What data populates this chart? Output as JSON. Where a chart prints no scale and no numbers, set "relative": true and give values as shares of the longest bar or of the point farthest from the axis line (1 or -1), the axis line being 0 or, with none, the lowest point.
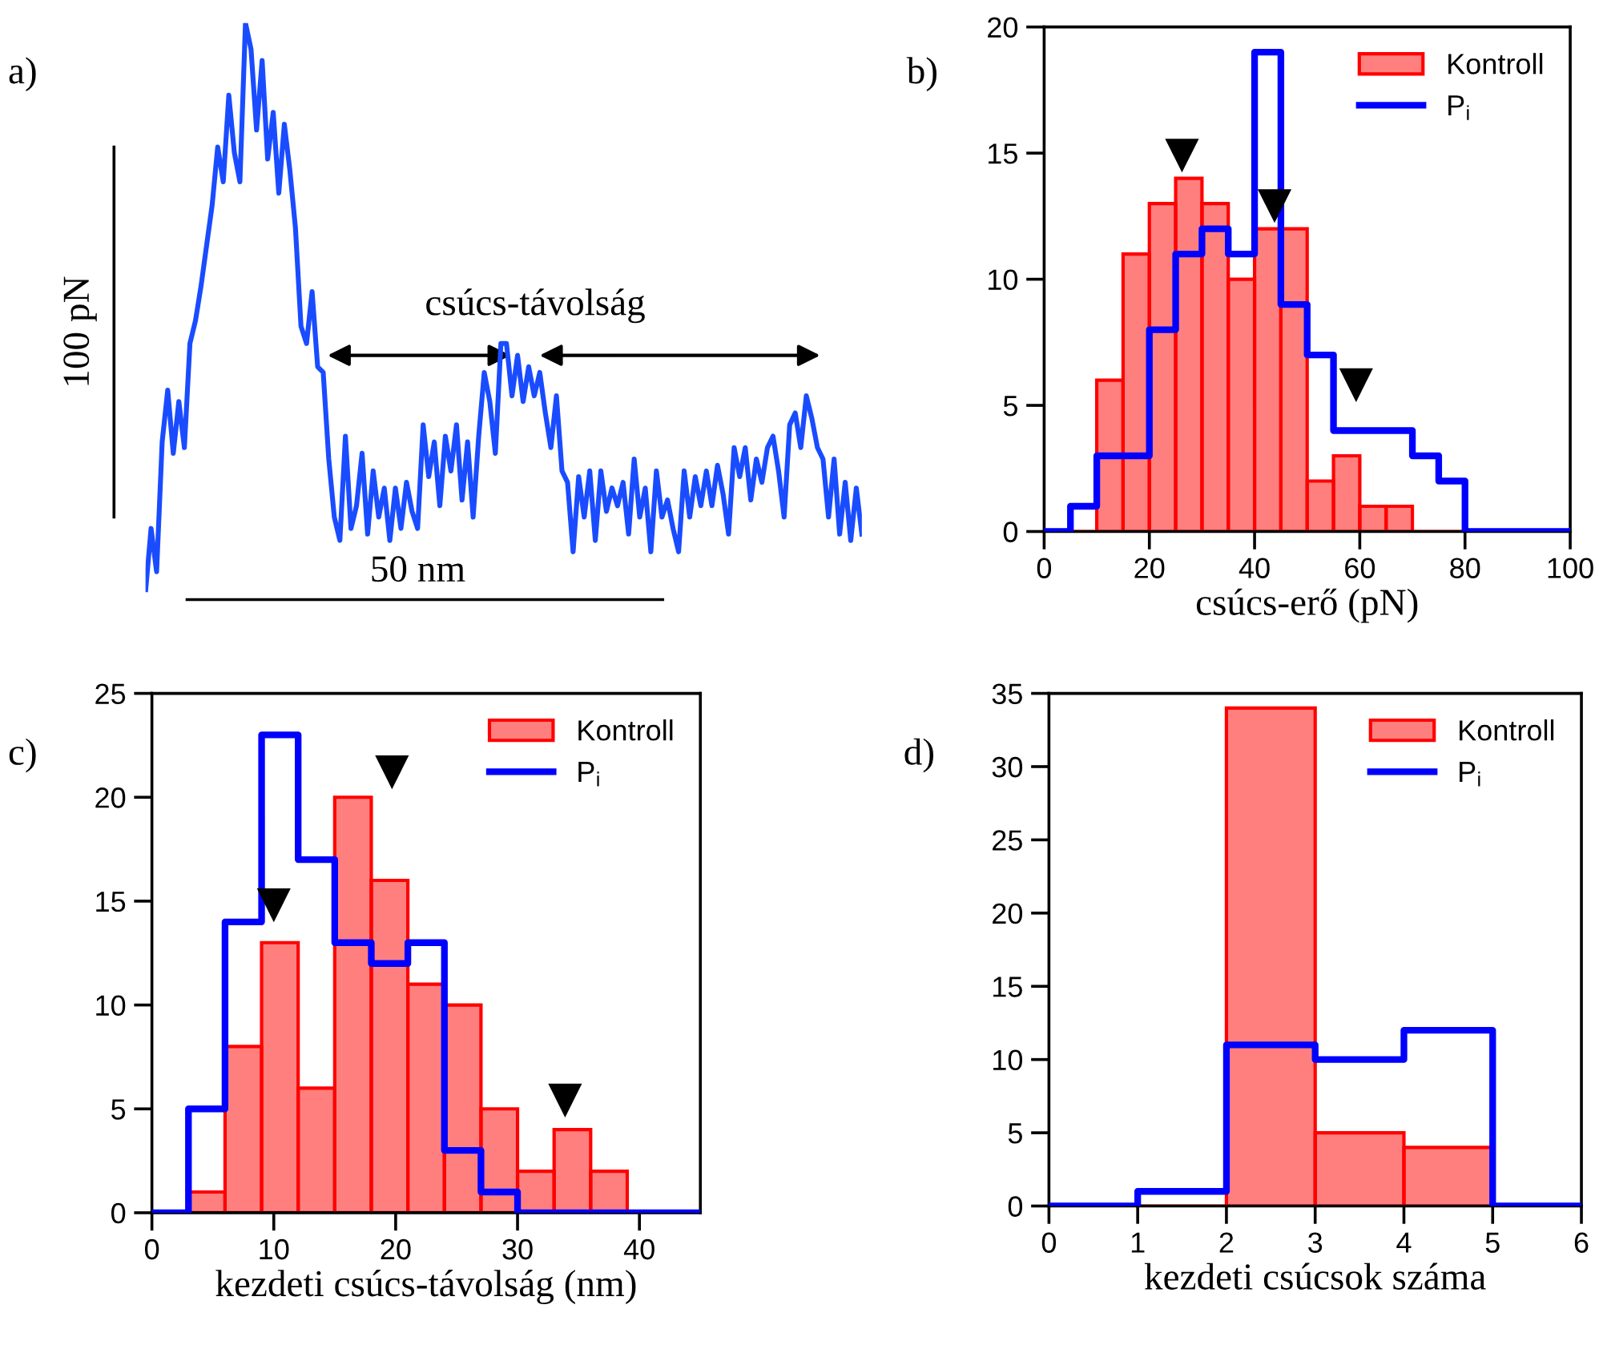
{
  "chart_data": [
    {
      "type": "line",
      "title": "a)",
      "relative": true,
      "annotations": [
        "100 pN",
        "50 nm",
        "csúcs-távolság"
      ],
      "categories": [
        null,
        null,
        null,
        null,
        null,
        null,
        null,
        null,
        null,
        null,
        null,
        null,
        null,
        null,
        null,
        null,
        null,
        null,
        null,
        null,
        null,
        null,
        null,
        null,
        null,
        null,
        null,
        null,
        null,
        null,
        null,
        null,
        null,
        null,
        null,
        null,
        null,
        null,
        null,
        null,
        null,
        null,
        null,
        null,
        null,
        null,
        null,
        null,
        null,
        null,
        null,
        null,
        null,
        null,
        null,
        null,
        null,
        null,
        null,
        null,
        null,
        null,
        null,
        null,
        null,
        null,
        null,
        null,
        null,
        null,
        null,
        null,
        null,
        null,
        null,
        null,
        null,
        null,
        null,
        null,
        null,
        null,
        null,
        null,
        null,
        null,
        null,
        null,
        null,
        null,
        null,
        null,
        null,
        null,
        null,
        null,
        null,
        null,
        null,
        null,
        null,
        null,
        null,
        null,
        null,
        null,
        null,
        null,
        null,
        null,
        null,
        null,
        null,
        null,
        null,
        null,
        null,
        null,
        null,
        null,
        null,
        null,
        null,
        null,
        null,
        null,
        null,
        null,
        null,
        null
      ],
      "series": [
        {
          "color": "#1a4cff",
          "values": [
            0.0,
            0.112,
            0.036,
            0.264,
            0.355,
            0.244,
            0.335,
            0.254,
            0.437,
            0.477,
            0.538,
            0.609,
            0.68,
            0.782,
            0.721,
            0.873,
            0.772,
            0.721,
            1.0,
            0.954,
            0.812,
            0.934,
            0.761,
            0.843,
            0.701,
            0.822,
            0.741,
            0.64,
            0.467,
            0.437,
            0.528,
            0.396,
            0.386,
            0.234,
            0.132,
            0.091,
            0.274,
            0.112,
            0.152,
            0.244,
            0.102,
            0.213,
            0.132,
            0.183,
            0.091,
            0.183,
            0.112,
            0.193,
            0.142,
            0.112,
            0.294,
            0.203,
            0.264,
            0.152,
            0.274,
            0.213,
            0.294,
            0.162,
            0.264,
            0.132,
            0.274,
            0.386,
            0.335,
            0.244,
            0.437,
            0.437,
            0.345,
            0.416,
            0.335,
            0.396,
            0.345,
            0.386,
            0.315,
            0.254,
            0.345,
            0.213,
            0.193,
            0.071,
            0.203,
            0.132,
            0.213,
            0.091,
            0.213,
            0.142,
            0.183,
            0.152,
            0.193,
            0.102,
            0.234,
            0.132,
            0.183,
            0.071,
            0.213,
            0.132,
            0.162,
            0.112,
            0.071,
            0.213,
            0.132,
            0.203,
            0.152,
            0.213,
            0.152,
            0.223,
            0.173,
            0.102,
            0.254,
            0.203,
            0.254,
            0.162,
            0.234,
            0.193,
            0.254,
            0.274,
            0.213,
            0.132,
            0.294,
            0.315,
            0.254,
            0.345,
            0.305,
            0.254,
            0.234,
            0.132,
            0.234,
            0.102,
            0.193,
            0.091,
            0.183,
            0.102
          ]
        }
      ]
    },
    {
      "type": "histogram",
      "title": "b)",
      "xlabel": "csúcs-erő (pN)",
      "legend": "top right",
      "bins": [
        0,
        5,
        10,
        15,
        20,
        25,
        30,
        35,
        40,
        45,
        50,
        55,
        60,
        65,
        70,
        75,
        80,
        85,
        90,
        95,
        100
      ],
      "xlim": [
        0,
        100
      ],
      "xticks": [
        0,
        20,
        40,
        60,
        80,
        100
      ],
      "ylim": [
        0,
        20
      ],
      "yticks": [
        0,
        5,
        10,
        15,
        20
      ],
      "series": [
        {
          "name": "Kontroll",
          "type": "histogram",
          "color": "#ff0000",
          "values": [
            0,
            0,
            6,
            11,
            13,
            14,
            13,
            10,
            12,
            12,
            2,
            3,
            1,
            1,
            0,
            0,
            0,
            0,
            0,
            0
          ]
        },
        {
          "name": "P$_{i}$",
          "type": "step",
          "color": "#0000ff",
          "x": [
            0,
            5,
            10,
            15,
            20,
            25,
            30,
            35,
            40,
            45,
            50,
            55,
            60,
            65,
            70,
            75,
            80,
            85,
            90,
            95,
            100
          ],
          "values": [
            0,
            1,
            3,
            3,
            8,
            11,
            12,
            11,
            19,
            9,
            7,
            4,
            4,
            4,
            3,
            2,
            0,
            0,
            0,
            0,
            0
          ]
        },
        {
          "type": "scatter",
          "marker": "triangle",
          "color": "#000000",
          "x": [
            26.2,
            43.8,
            59.3
          ],
          "values": [
            14.9,
            12.9,
            5.8
          ]
        }
      ]
    },
    {
      "type": "histogram",
      "title": "c)",
      "xlabel": "kezdeti csúcs-távolság (nm)",
      "legend": "top right",
      "bins": [
        0,
        3,
        6,
        9,
        12,
        15,
        18,
        21,
        24,
        27,
        30,
        33,
        36,
        39,
        42,
        45
      ],
      "xlim": [
        0,
        45
      ],
      "xticks": [
        0,
        10,
        20,
        30,
        40
      ],
      "ylim": [
        0,
        25
      ],
      "yticks": [
        0,
        5,
        10,
        15,
        20,
        25
      ],
      "series": [
        {
          "name": "Kontroll",
          "type": "histogram",
          "color": "#ff0000",
          "values": [
            0,
            1,
            8,
            13,
            6,
            20,
            16,
            11,
            10,
            5,
            2,
            4,
            2,
            0,
            0
          ]
        },
        {
          "name": "P$_{i}$",
          "type": "step",
          "color": "#0000ff",
          "x": [
            0,
            3,
            6,
            9,
            12,
            15,
            18,
            21,
            24,
            27,
            30,
            33,
            36,
            39,
            42,
            45
          ],
          "values": [
            0,
            5,
            14,
            23,
            17,
            13,
            12,
            13,
            3,
            1,
            0,
            0,
            0,
            0,
            0,
            0
          ]
        },
        {
          "type": "scatter",
          "marker": "triangle",
          "color": "#000000",
          "x": [
            10.0,
            19.7,
            33.9
          ],
          "values": [
            14.8,
            21.2,
            5.4
          ]
        }
      ]
    },
    {
      "type": "histogram",
      "title": "d)",
      "xlabel": "kezdeti csúcsok száma",
      "legend": "top right",
      "bins": [
        0,
        1,
        2,
        3,
        4,
        5,
        6
      ],
      "xlim": [
        0,
        6
      ],
      "xticks": [
        0,
        1,
        2,
        3,
        4,
        5,
        6
      ],
      "ylim": [
        0,
        35
      ],
      "yticks": [
        0,
        5,
        10,
        15,
        20,
        25,
        30,
        35
      ],
      "series": [
        {
          "name": "Kontroll",
          "type": "histogram",
          "color": "#ff0000",
          "values": [
            0,
            0,
            34,
            5,
            4,
            0
          ]
        },
        {
          "name": "P$_{i}$",
          "type": "step",
          "color": "#0000ff",
          "x": [
            0,
            1,
            2,
            3,
            4,
            5,
            6
          ],
          "values": [
            0,
            1,
            11,
            10,
            12,
            0,
            0
          ]
        }
      ]
    }
  ]
}
